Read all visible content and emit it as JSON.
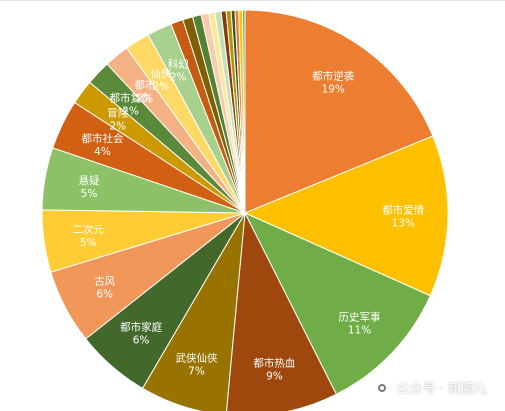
{
  "chart_data": {
    "type": "pie",
    "title": "",
    "slices": [
      {
        "label": "都市逆袭",
        "value": 19,
        "pct_label": "19%",
        "color": "#ED7D31"
      },
      {
        "label": "都市爱情",
        "value": 13,
        "pct_label": "13%",
        "color": "#FFC000"
      },
      {
        "label": "历史军事",
        "value": 11,
        "pct_label": "11%",
        "color": "#70AD47"
      },
      {
        "label": "都市热血",
        "value": 9,
        "pct_label": "9%",
        "color": "#9E480E"
      },
      {
        "label": "武侠仙侠",
        "value": 7,
        "pct_label": "7%",
        "color": "#997300"
      },
      {
        "label": "都市家庭",
        "value": 6,
        "pct_label": "6%",
        "color": "#43682B"
      },
      {
        "label": "古风",
        "value": 6,
        "pct_label": "6%",
        "color": "#F1975A"
      },
      {
        "label": "二次元",
        "value": 5,
        "pct_label": "5%",
        "color": "#FFCD33"
      },
      {
        "label": "悬疑",
        "value": 5,
        "pct_label": "5%",
        "color": "#8CC168"
      },
      {
        "label": "都市社会",
        "value": 4,
        "pct_label": "4%",
        "color": "#D26012"
      },
      {
        "label": "冒险",
        "value": 2,
        "pct_label": "2%",
        "color": "#CC9A00"
      },
      {
        "label": "都市复仇",
        "value": 2,
        "pct_label": "2%",
        "color": "#5A8A39"
      },
      {
        "label": "都市",
        "value": 2,
        "pct_label": "2%",
        "color": "#F4B183"
      },
      {
        "label": "仙侠",
        "value": 2,
        "pct_label": "2%",
        "color": "#FFD966"
      },
      {
        "label": "科幻",
        "value": 2,
        "pct_label": "2%",
        "color": "#A9D18E"
      },
      {
        "label": "",
        "value": 1,
        "pct_label": "",
        "color": "#C55A11"
      },
      {
        "label": "",
        "value": 0.8,
        "pct_label": "",
        "color": "#7F6000"
      },
      {
        "label": "",
        "value": 0.7,
        "pct_label": "",
        "color": "#548235"
      },
      {
        "label": "",
        "value": 0.6,
        "pct_label": "",
        "color": "#F8CBAD"
      },
      {
        "label": "",
        "value": 0.5,
        "pct_label": "",
        "color": "#FFE699"
      },
      {
        "label": "",
        "value": 0.5,
        "pct_label": "",
        "color": "#C5E0B4"
      },
      {
        "label": "",
        "value": 0.4,
        "pct_label": "",
        "color": "#843C0C"
      },
      {
        "label": "",
        "value": 0.4,
        "pct_label": "",
        "color": "#BF9000"
      },
      {
        "label": "",
        "value": 0.3,
        "pct_label": "",
        "color": "#385723"
      },
      {
        "label": "",
        "value": 0.3,
        "pct_label": "",
        "color": "#ED7D31"
      },
      {
        "label": "",
        "value": 0.3,
        "pct_label": "",
        "color": "#FFC000"
      },
      {
        "label": "",
        "value": 0.2,
        "pct_label": "",
        "color": "#70AD47"
      }
    ],
    "legend": "none",
    "data_labels": "inside"
  },
  "watermark": {
    "text": "公众号 · 新腕儿",
    "icon": "wechat-official-account-icon"
  }
}
